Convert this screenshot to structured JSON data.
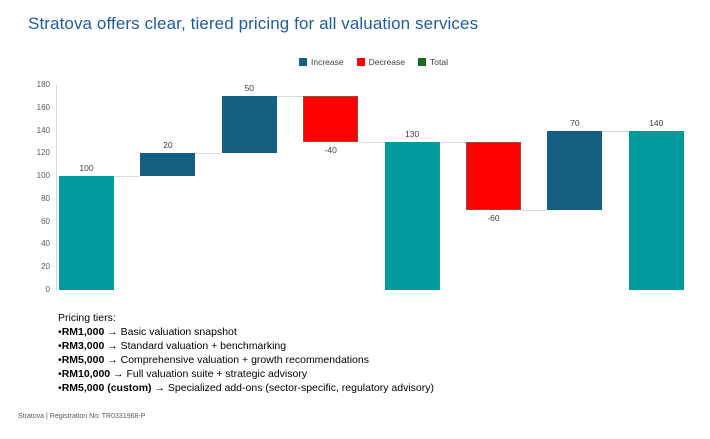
{
  "title": "Stratova offers clear, tiered pricing for all valuation services",
  "footer": "Stratova | Registration No: TR0331968-P",
  "pricing": {
    "heading": "Pricing tiers:",
    "bullet": "•",
    "items": [
      {
        "price": "RM1,000",
        "desc": " → Basic valuation snapshot"
      },
      {
        "price": "RM3,000",
        "desc": " → Standard valuation + benchmarking"
      },
      {
        "price": "RM5,000",
        "desc": " → Comprehensive valuation + growth recommendations"
      },
      {
        "price": "RM10,000",
        "desc": " → Full valuation suite + strategic advisory"
      },
      {
        "price": "RM5,000 (custom)",
        "desc": " → Specialized add-ons (sector-specific, regulatory advisory)"
      }
    ]
  },
  "chart_data": {
    "type": "waterfall",
    "title": "",
    "xlabel": "",
    "ylabel": "",
    "ylim": [
      0,
      180
    ],
    "y_ticks": [
      0,
      20,
      40,
      60,
      80,
      100,
      120,
      140,
      160,
      180
    ],
    "grid": false,
    "legend_position": "top-center",
    "legend": [
      {
        "label": "Increase",
        "color": "#156082"
      },
      {
        "label": "Decrease",
        "color": "#FE0000"
      },
      {
        "label": "Total",
        "color": "#196B24"
      }
    ],
    "bars": [
      {
        "label": "100",
        "value": 100,
        "kind": "total"
      },
      {
        "label": "20",
        "value": 20,
        "kind": "increase"
      },
      {
        "label": "50",
        "value": 50,
        "kind": "increase"
      },
      {
        "label": "-40",
        "value": -40,
        "kind": "decrease"
      },
      {
        "label": "130",
        "value": 130,
        "kind": "total"
      },
      {
        "label": "-60",
        "value": -60,
        "kind": "decrease"
      },
      {
        "label": "70",
        "value": 70,
        "kind": "increase"
      },
      {
        "label": "140",
        "value": 140,
        "kind": "total"
      }
    ],
    "colors": {
      "increase": "#156082",
      "decrease": "#FE0000",
      "total": "#029A9A",
      "connector": "#D9D9D9",
      "axis": "#D9D9D9"
    }
  }
}
